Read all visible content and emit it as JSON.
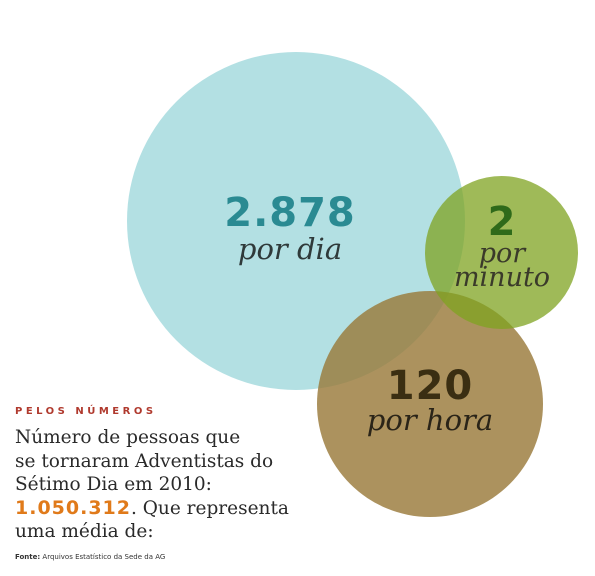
{
  "bubbles": {
    "day": {
      "value": "2.878",
      "unit": "por dia",
      "color": "#a9dcdf",
      "text_color": "#2a8a92"
    },
    "minute": {
      "value": "2",
      "unit_line1": "por",
      "unit_line2": "minuto",
      "color": "#7fa320",
      "text_color": "#2f6a1a"
    },
    "hour": {
      "value": "120",
      "unit": "por hora",
      "color": "#9a7a3a",
      "text_color": "#3a2e12"
    }
  },
  "caption": {
    "kicker": "PELOS NÚMEROS",
    "line1": "Número de pessoas que",
    "line2": "se tornaram Adventistas do",
    "line3": "Sétimo Dia em 2010:",
    "total": "1.050.312",
    "after_total": ". Que representa",
    "line5": "uma média de:",
    "accent_color": "#e07a1a",
    "kicker_color": "#b03a2e"
  },
  "source": {
    "label": "Fonte:",
    "text": " Arquivos Estatístico da Sede da AG"
  }
}
